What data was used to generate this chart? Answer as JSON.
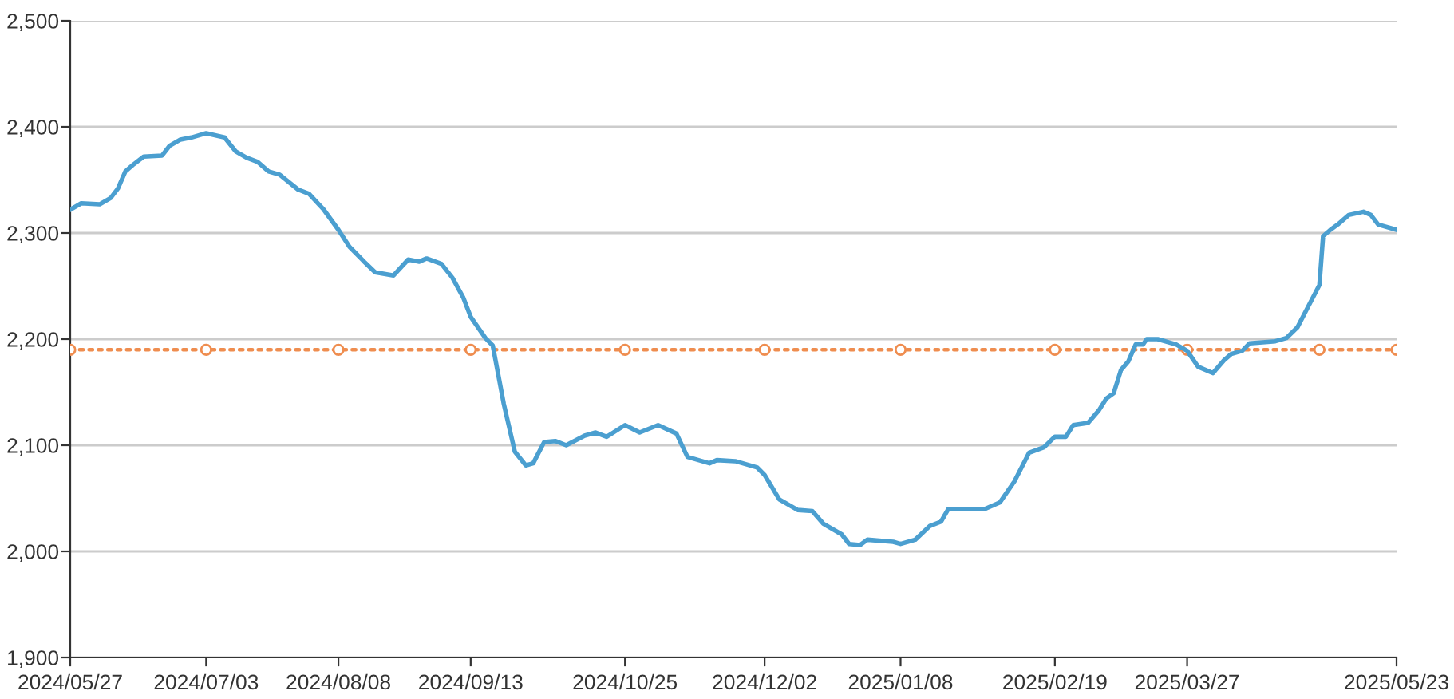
{
  "chart_data": {
    "type": "line",
    "xlim": [
      "2024-05-27",
      "2025-05-23"
    ],
    "xticks": [
      {
        "value": "2024-05-27",
        "label": "2024/05/27"
      },
      {
        "value": "2024-07-03",
        "label": "2024/07/03"
      },
      {
        "value": "2024-08-08",
        "label": "2024/08/08"
      },
      {
        "value": "2024-09-13",
        "label": "2024/09/13"
      },
      {
        "value": "2024-10-25",
        "label": "2024/10/25"
      },
      {
        "value": "2024-12-02",
        "label": "2024/12/02"
      },
      {
        "value": "2025-01-08",
        "label": "2025/01/08"
      },
      {
        "value": "2025-02-19",
        "label": "2025/02/19"
      },
      {
        "value": "2025-03-27",
        "label": "2025/03/27"
      },
      {
        "value": "2025-05-23",
        "label": "2025/05/23"
      }
    ],
    "ylim": [
      1900,
      2500
    ],
    "yticks": [
      {
        "value": 1900,
        "label": "1,900"
      },
      {
        "value": 2000,
        "label": "2,000"
      },
      {
        "value": 2100,
        "label": "2,100"
      },
      {
        "value": 2200,
        "label": "2,200"
      },
      {
        "value": 2300,
        "label": "2,300"
      },
      {
        "value": 2400,
        "label": "2,400"
      },
      {
        "value": 2500,
        "label": "2,500"
      }
    ],
    "grid": "y",
    "line_style": "solid",
    "series": [
      {
        "color": "#4b9fd0",
        "x": [
          "2024-05-27",
          "2024-05-30",
          "2024-06-04",
          "2024-06-07",
          "2024-06-09",
          "2024-06-11",
          "2024-06-13",
          "2024-06-16",
          "2024-06-21",
          "2024-06-23",
          "2024-06-26",
          "2024-06-29",
          "2024-07-03",
          "2024-07-08",
          "2024-07-11",
          "2024-07-14",
          "2024-07-17",
          "2024-07-20",
          "2024-07-23",
          "2024-07-28",
          "2024-07-31",
          "2024-08-04",
          "2024-08-08",
          "2024-08-11",
          "2024-08-15",
          "2024-08-18",
          "2024-08-23",
          "2024-08-27",
          "2024-08-30",
          "2024-09-01",
          "2024-09-05",
          "2024-09-08",
          "2024-09-11",
          "2024-09-13",
          "2024-09-17",
          "2024-09-19",
          "2024-09-22",
          "2024-09-25",
          "2024-09-28",
          "2024-09-30",
          "2024-10-03",
          "2024-10-06",
          "2024-10-09",
          "2024-10-14",
          "2024-10-17",
          "2024-10-20",
          "2024-10-25",
          "2024-10-29",
          "2024-11-03",
          "2024-11-08",
          "2024-11-11",
          "2024-11-17",
          "2024-11-19",
          "2024-11-24",
          "2024-11-30",
          "2024-12-02",
          "2024-12-06",
          "2024-12-11",
          "2024-12-15",
          "2024-12-18",
          "2024-12-23",
          "2024-12-25",
          "2024-12-28",
          "2024-12-30",
          "2025-01-06",
          "2025-01-08",
          "2025-01-12",
          "2025-01-16",
          "2025-01-19",
          "2025-01-21",
          "2025-01-31",
          "2025-02-04",
          "2025-02-08",
          "2025-02-12",
          "2025-02-16",
          "2025-02-19",
          "2025-02-22",
          "2025-02-24",
          "2025-02-28",
          "2025-03-03",
          "2025-03-05",
          "2025-03-07",
          "2025-03-09",
          "2025-03-11",
          "2025-03-13",
          "2025-03-15",
          "2025-03-16",
          "2025-03-19",
          "2025-03-24",
          "2025-03-27",
          "2025-03-30",
          "2025-04-03",
          "2025-04-06",
          "2025-04-08",
          "2025-04-11",
          "2025-04-13",
          "2025-04-20",
          "2025-04-23",
          "2025-04-26",
          "2025-04-29",
          "2025-05-02",
          "2025-05-03",
          "2025-05-05",
          "2025-05-07",
          "2025-05-10",
          "2025-05-14",
          "2025-05-16",
          "2025-05-18",
          "2025-05-23"
        ],
        "values": [
          2322,
          2328,
          2327,
          2333,
          2342,
          2358,
          2364,
          2372,
          2373,
          2382,
          2388,
          2390,
          2394,
          2390,
          2377,
          2371,
          2367,
          2358,
          2355,
          2341,
          2337,
          2322,
          2303,
          2287,
          2273,
          2263,
          2260,
          2275,
          2273,
          2276,
          2271,
          2258,
          2239,
          2221,
          2201,
          2194,
          2139,
          2094,
          2081,
          2083,
          2103,
          2104,
          2100,
          2109,
          2112,
          2108,
          2119,
          2112,
          2119,
          2111,
          2089,
          2083,
          2086,
          2085,
          2079,
          2072,
          2049,
          2039,
          2038,
          2026,
          2016,
          2007,
          2006,
          2011,
          2009,
          2007,
          2011,
          2024,
          2028,
          2040,
          2040,
          2046,
          2066,
          2093,
          2098,
          2108,
          2108,
          2119,
          2121,
          2133,
          2144,
          2149,
          2171,
          2179,
          2195,
          2195,
          2200,
          2200,
          2195,
          2189,
          2174,
          2168,
          2180,
          2186,
          2189,
          2196,
          2198,
          2201,
          2211,
          2231,
          2251,
          2297,
          2303,
          2308,
          2317,
          2320,
          2317,
          2308,
          2303
        ]
      },
      {
        "color": "#ef8d4f",
        "line_style": "dotted",
        "marker": "circle",
        "x": [
          "2024-05-27",
          "2024-07-03",
          "2024-08-08",
          "2024-09-13",
          "2024-10-25",
          "2024-12-02",
          "2025-01-08",
          "2025-02-19",
          "2025-03-27",
          "2025-05-02",
          "2025-05-23"
        ],
        "values": [
          2190,
          2190,
          2190,
          2190,
          2190,
          2190,
          2190,
          2190,
          2190,
          2190,
          2190
        ]
      }
    ]
  }
}
